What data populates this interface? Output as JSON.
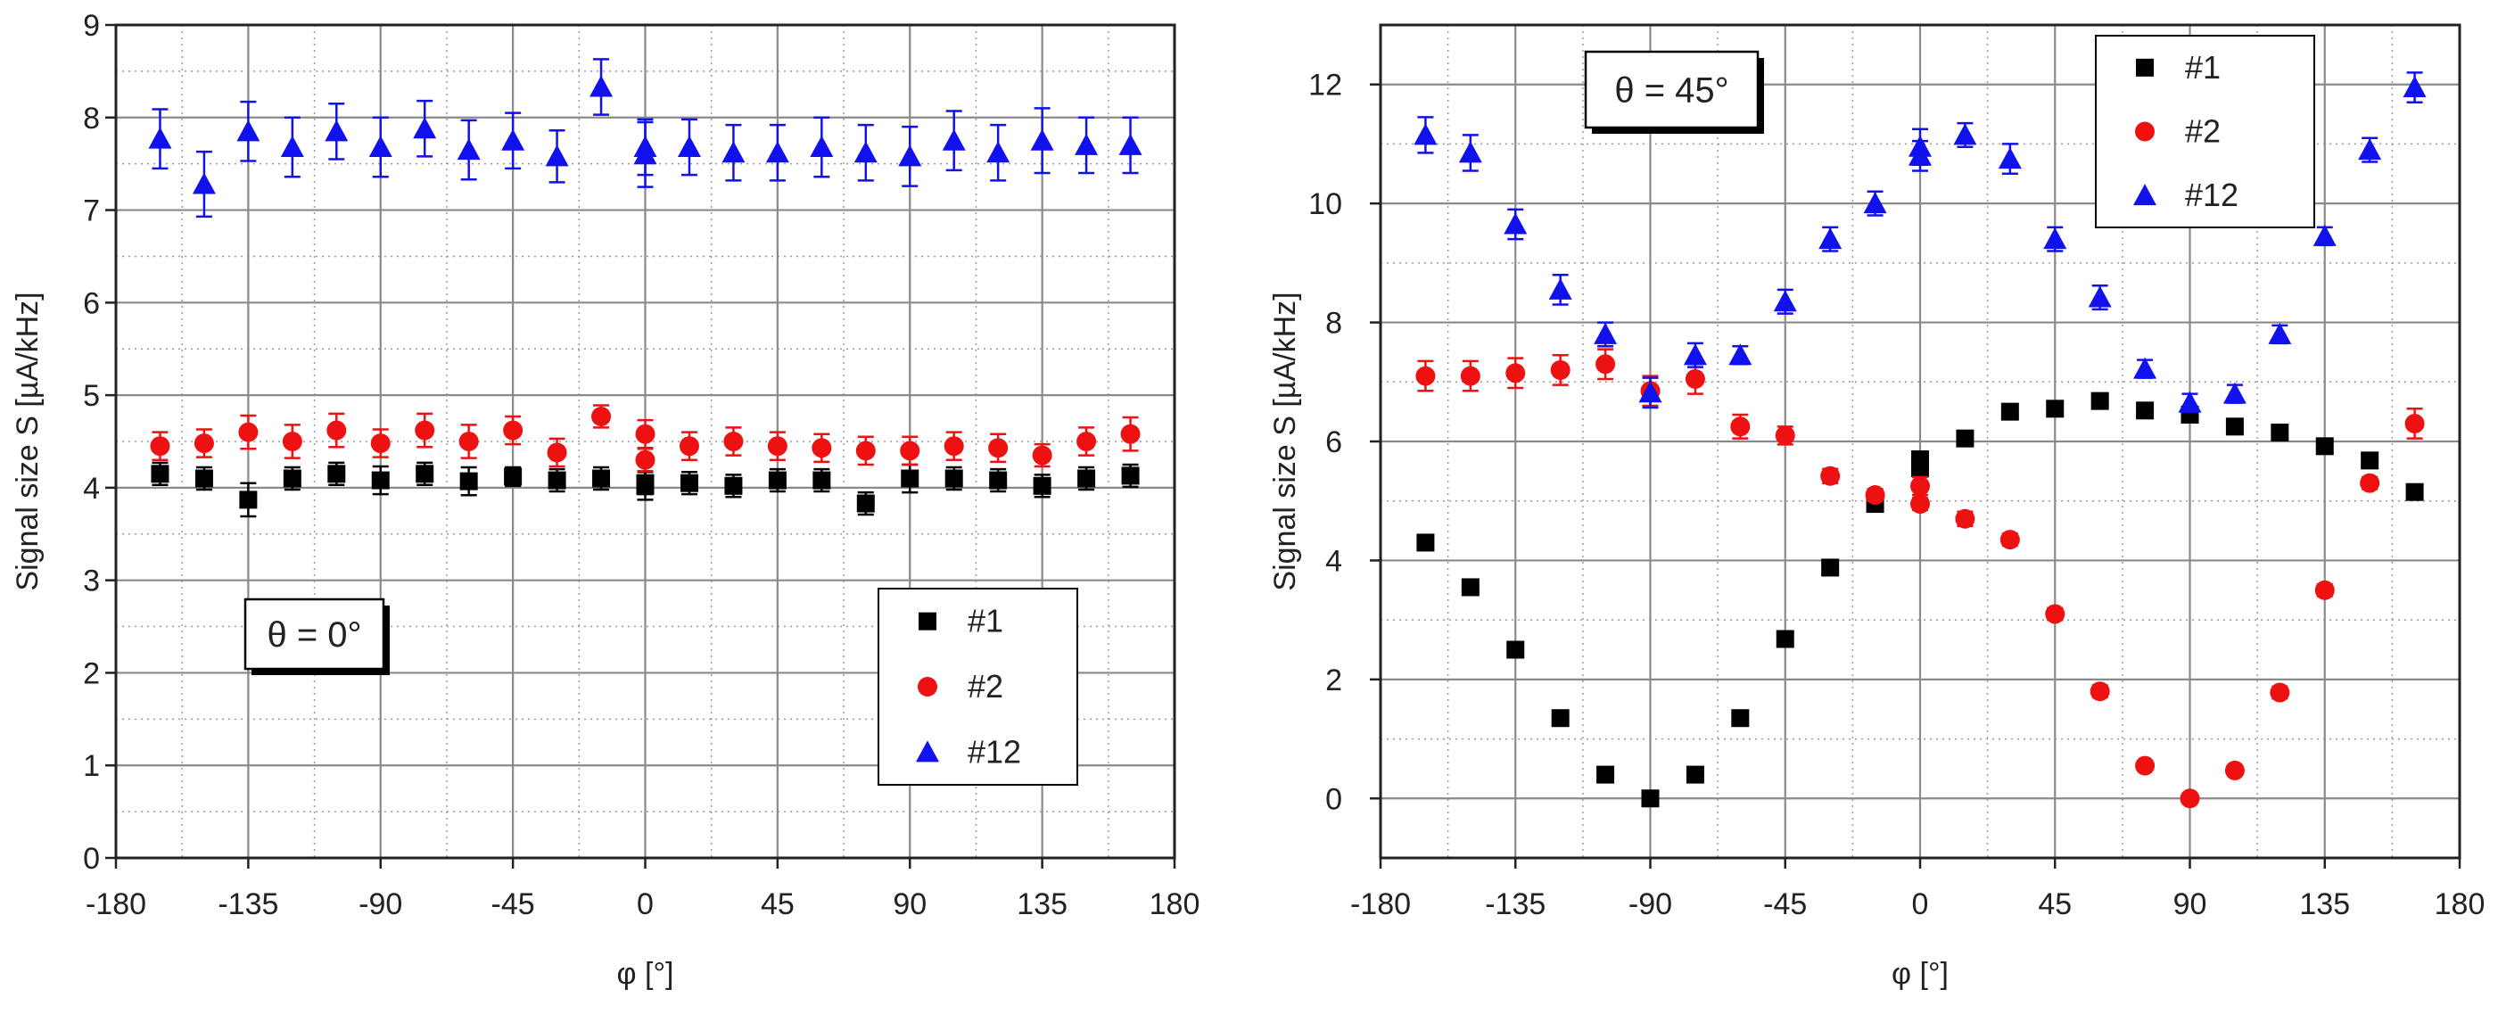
{
  "chart_data": [
    {
      "type": "scatter",
      "annotation": "θ = 0°",
      "xlabel": "φ [°]",
      "ylabel": "Signal size S [µA/kHz]",
      "xlim": [
        -180,
        180
      ],
      "ylim": [
        0,
        9
      ],
      "xticks": [
        -180,
        -135,
        -90,
        -45,
        0,
        45,
        90,
        135,
        180
      ],
      "yticks": [
        0,
        1,
        2,
        3,
        4,
        5,
        6,
        7,
        8,
        9
      ],
      "grid": true,
      "legend_position": "lower-right",
      "series": [
        {
          "name": "#1",
          "color": "#000000",
          "marker": "square",
          "x": [
            -165,
            -150,
            -135,
            -120,
            -105,
            -90,
            -75,
            -60,
            -45,
            -30,
            -15,
            0,
            0,
            15,
            30,
            45,
            60,
            75,
            90,
            105,
            120,
            135,
            150,
            165
          ],
          "y": [
            4.15,
            4.1,
            3.87,
            4.1,
            4.15,
            4.08,
            4.15,
            4.07,
            4.12,
            4.08,
            4.1,
            4.02,
            4.05,
            4.05,
            4.02,
            4.08,
            4.08,
            3.83,
            4.1,
            4.1,
            4.08,
            4.02,
            4.1,
            4.13
          ],
          "err": [
            0.12,
            0.12,
            0.18,
            0.12,
            0.12,
            0.15,
            0.12,
            0.15,
            0.1,
            0.12,
            0.12,
            0.15,
            0.12,
            0.12,
            0.12,
            0.12,
            0.12,
            0.12,
            0.15,
            0.12,
            0.12,
            0.12,
            0.12,
            0.12
          ]
        },
        {
          "name": "#2",
          "color": "#ee1111",
          "marker": "circle",
          "x": [
            -165,
            -150,
            -135,
            -120,
            -105,
            -90,
            -75,
            -60,
            -45,
            -30,
            -15,
            0,
            0,
            15,
            30,
            45,
            60,
            75,
            90,
            105,
            120,
            135,
            150,
            165
          ],
          "y": [
            4.45,
            4.48,
            4.6,
            4.5,
            4.62,
            4.48,
            4.62,
            4.5,
            4.62,
            4.38,
            4.77,
            4.58,
            4.3,
            4.45,
            4.5,
            4.45,
            4.43,
            4.4,
            4.4,
            4.45,
            4.43,
            4.35,
            4.5,
            4.58
          ],
          "err": [
            0.15,
            0.15,
            0.18,
            0.18,
            0.18,
            0.15,
            0.18,
            0.18,
            0.15,
            0.15,
            0.12,
            0.15,
            0.12,
            0.15,
            0.15,
            0.15,
            0.15,
            0.15,
            0.15,
            0.15,
            0.15,
            0.12,
            0.15,
            0.18
          ]
        },
        {
          "name": "#12",
          "color": "#1111ee",
          "marker": "triangle",
          "x": [
            -165,
            -150,
            -135,
            -120,
            -105,
            -90,
            -75,
            -60,
            -45,
            -30,
            -15,
            0,
            0,
            15,
            30,
            45,
            60,
            75,
            90,
            105,
            120,
            135,
            150,
            165
          ],
          "y": [
            7.77,
            7.28,
            7.85,
            7.68,
            7.85,
            7.68,
            7.88,
            7.65,
            7.75,
            7.58,
            8.33,
            7.68,
            7.6,
            7.68,
            7.62,
            7.62,
            7.68,
            7.62,
            7.58,
            7.75,
            7.62,
            7.75,
            7.7,
            7.7
          ],
          "err": [
            0.32,
            0.35,
            0.32,
            0.32,
            0.3,
            0.32,
            0.3,
            0.32,
            0.3,
            0.28,
            0.3,
            0.3,
            0.35,
            0.3,
            0.3,
            0.3,
            0.32,
            0.3,
            0.32,
            0.32,
            0.3,
            0.35,
            0.3,
            0.3
          ]
        }
      ]
    },
    {
      "type": "scatter",
      "annotation": "θ = 45°",
      "xlabel": "φ [°]",
      "ylabel": "Signal size S [µA/kHz]",
      "xlim": [
        -180,
        180
      ],
      "ylim": [
        -1,
        13
      ],
      "xticks": [
        -180,
        -135,
        -90,
        -45,
        0,
        45,
        90,
        135,
        180
      ],
      "yticks": [
        0,
        2,
        4,
        6,
        8,
        10,
        12
      ],
      "grid": true,
      "legend_position": "top-right",
      "series": [
        {
          "name": "#1",
          "color": "#000000",
          "marker": "square",
          "x": [
            -165,
            -150,
            -135,
            -120,
            -105,
            -90,
            -75,
            -60,
            -45,
            -30,
            -15,
            0,
            0,
            15,
            30,
            45,
            60,
            75,
            90,
            105,
            120,
            135,
            150,
            165
          ],
          "y": [
            4.3,
            3.55,
            2.5,
            1.35,
            0.4,
            0.0,
            0.4,
            1.35,
            2.68,
            3.88,
            4.95,
            5.55,
            5.7,
            6.05,
            6.5,
            6.55,
            6.68,
            6.52,
            6.45,
            6.25,
            6.15,
            5.92,
            5.68,
            5.15
          ],
          "err": []
        },
        {
          "name": "#2",
          "color": "#ee1111",
          "marker": "circle",
          "x": [
            -165,
            -150,
            -135,
            -120,
            -105,
            -90,
            -75,
            -60,
            -45,
            -30,
            -15,
            0,
            0,
            15,
            30,
            45,
            60,
            75,
            90,
            105,
            120,
            135,
            150,
            165
          ],
          "y": [
            7.1,
            7.1,
            7.15,
            7.2,
            7.3,
            6.85,
            7.05,
            6.25,
            6.1,
            5.42,
            5.1,
            4.95,
            5.25,
            4.7,
            4.35,
            3.1,
            1.8,
            0.55,
            0.0,
            0.47,
            1.78,
            3.5,
            5.3,
            6.3
          ],
          "err": [
            0.25,
            0.25,
            0.25,
            0.25,
            0.25,
            0.25,
            0.25,
            0.2,
            0.15,
            0.12,
            0.1,
            0.1,
            0.15,
            0.12,
            0.1,
            0.1,
            0.1,
            0.08,
            0.08,
            0.08,
            0.1,
            0.1,
            0.1,
            0.25
          ]
        },
        {
          "name": "#12",
          "color": "#1111ee",
          "marker": "triangle",
          "x": [
            -165,
            -150,
            -135,
            -120,
            -105,
            -90,
            -75,
            -60,
            -45,
            -30,
            -15,
            0,
            0,
            15,
            30,
            45,
            60,
            75,
            90,
            105,
            120,
            135,
            150,
            165
          ],
          "y": [
            11.15,
            10.85,
            9.65,
            8.55,
            7.8,
            6.82,
            7.45,
            7.45,
            8.35,
            9.4,
            10.0,
            10.95,
            10.8,
            11.15,
            10.75,
            9.4,
            8.42,
            7.22,
            6.65,
            6.8,
            7.8,
            9.45,
            10.9,
            11.95
          ],
          "err": [
            0.3,
            0.3,
            0.25,
            0.25,
            0.2,
            0.25,
            0.2,
            0.15,
            0.2,
            0.2,
            0.2,
            0.3,
            0.25,
            0.2,
            0.25,
            0.2,
            0.2,
            0.15,
            0.15,
            0.15,
            0.15,
            0.15,
            0.2,
            0.25
          ]
        }
      ]
    }
  ]
}
